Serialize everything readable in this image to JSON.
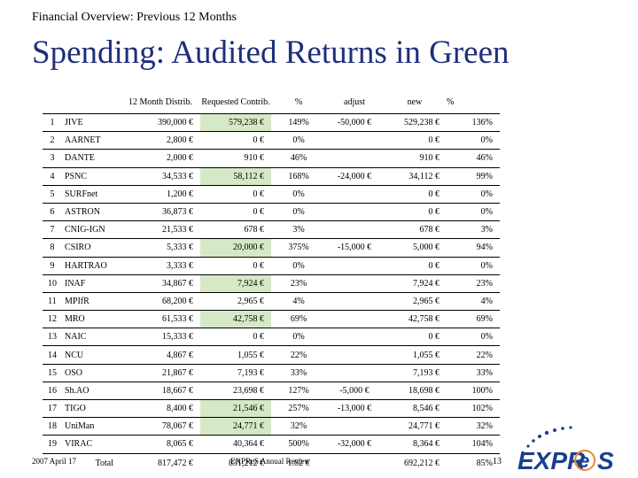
{
  "header": {
    "subtitle": "Financial Overview: Previous 12 Months",
    "title": "Spending: Audited Returns in Green"
  },
  "table": {
    "columns": [
      "",
      "",
      "12 Month Distrib.",
      "Requested Contrib.",
      "%",
      "adjust",
      "new",
      "%"
    ],
    "rows": [
      {
        "num": "1",
        "name": "JIVE",
        "distrib": "390,000 €",
        "requested": "579,238 €",
        "pct": "149%",
        "adjust": "-50,000 €",
        "new": "529,238 €",
        "pct2": "136%",
        "audited": true
      },
      {
        "num": "2",
        "name": "AARNET",
        "distrib": "2,800 €",
        "requested": "0 €",
        "pct": "0%",
        "adjust": "",
        "new": "0 €",
        "pct2": "0%",
        "audited": false
      },
      {
        "num": "3",
        "name": "DANTE",
        "distrib": "2,000 €",
        "requested": "910 €",
        "pct": "46%",
        "adjust": "",
        "new": "910 €",
        "pct2": "46%",
        "audited": false
      },
      {
        "num": "4",
        "name": "PSNC",
        "distrib": "34,533 €",
        "requested": "58,112 €",
        "pct": "168%",
        "adjust": "-24,000 €",
        "new": "34,112 €",
        "pct2": "99%",
        "audited": true
      },
      {
        "num": "5",
        "name": "SURFnet",
        "distrib": "1,200 €",
        "requested": "0 €",
        "pct": "0%",
        "adjust": "",
        "new": "0 €",
        "pct2": "0%",
        "audited": false
      },
      {
        "num": "6",
        "name": "ASTRON",
        "distrib": "36,873 €",
        "requested": "0 €",
        "pct": "0%",
        "adjust": "",
        "new": "0 €",
        "pct2": "0%",
        "audited": false
      },
      {
        "num": "7",
        "name": "CNIG-IGN",
        "distrib": "21,533 €",
        "requested": "678 €",
        "pct": "3%",
        "adjust": "",
        "new": "678 €",
        "pct2": "3%",
        "audited": false
      },
      {
        "num": "8",
        "name": "CSIRO",
        "distrib": "5,333 €",
        "requested": "20,000 €",
        "pct": "375%",
        "adjust": "-15,000 €",
        "new": "5,000 €",
        "pct2": "94%",
        "audited": true
      },
      {
        "num": "9",
        "name": "HARTRAO",
        "distrib": "3,333 €",
        "requested": "0 €",
        "pct": "0%",
        "adjust": "",
        "new": "0 €",
        "pct2": "0%",
        "audited": false
      },
      {
        "num": "10",
        "name": "INAF",
        "distrib": "34,867 €",
        "requested": "7,924 €",
        "pct": "23%",
        "adjust": "",
        "new": "7,924 €",
        "pct2": "23%",
        "audited": true
      },
      {
        "num": "11",
        "name": "MPIfR",
        "distrib": "68,200 €",
        "requested": "2,965 €",
        "pct": "4%",
        "adjust": "",
        "new": "2,965 €",
        "pct2": "4%",
        "audited": false
      },
      {
        "num": "12",
        "name": "MRO",
        "distrib": "61,533 €",
        "requested": "42,758 €",
        "pct": "69%",
        "adjust": "",
        "new": "42,758 €",
        "pct2": "69%",
        "audited": true
      },
      {
        "num": "13",
        "name": "NAIC",
        "distrib": "15,333 €",
        "requested": "0 €",
        "pct": "0%",
        "adjust": "",
        "new": "0 €",
        "pct2": "0%",
        "audited": false
      },
      {
        "num": "14",
        "name": "NCU",
        "distrib": "4,867 €",
        "requested": "1,055 €",
        "pct": "22%",
        "adjust": "",
        "new": "1,055 €",
        "pct2": "22%",
        "audited": false
      },
      {
        "num": "15",
        "name": "OSO",
        "distrib": "21,867 €",
        "requested": "7,193 €",
        "pct": "33%",
        "adjust": "",
        "new": "7,193 €",
        "pct2": "33%",
        "audited": false
      },
      {
        "num": "16",
        "name": "Sh.AO",
        "distrib": "18,667 €",
        "requested": "23,698 €",
        "pct": "127%",
        "adjust": "-5,000 €",
        "new": "18,698 €",
        "pct2": "100%",
        "audited": false
      },
      {
        "num": "17",
        "name": "TIGO",
        "distrib": "8,400 €",
        "requested": "21,546 €",
        "pct": "257%",
        "adjust": "-13,000 €",
        "new": "8,546 €",
        "pct2": "102%",
        "audited": true
      },
      {
        "num": "18",
        "name": "UniMan",
        "distrib": "78,067 €",
        "requested": "24,771 €",
        "pct": "32%",
        "adjust": "",
        "new": "24,771 €",
        "pct2": "32%",
        "audited": true
      },
      {
        "num": "19",
        "name": "VIRAC",
        "distrib": "8,065 €",
        "requested": "40,364 €",
        "pct": "500%",
        "adjust": "-32,000 €",
        "new": "8,364 €",
        "pct2": "104%",
        "audited": false
      }
    ],
    "total": {
      "label": "Total",
      "distrib": "817,472 €",
      "requested": "831,212 €",
      "pct": "1.02 €",
      "new": "692,212 €",
      "pct2": "85%"
    }
  },
  "colors": {
    "title": "#1f2f7a",
    "audited_green": "#d6e9c6",
    "logo_blue": "#1b3f8f",
    "logo_orange": "#e8892b"
  },
  "footer": {
    "date": "2007 April 17",
    "center": "EXPReS Annual Review",
    "page": "13"
  },
  "logo": {
    "text_left": "EXPR",
    "text_e": "e",
    "text_right": "S"
  }
}
